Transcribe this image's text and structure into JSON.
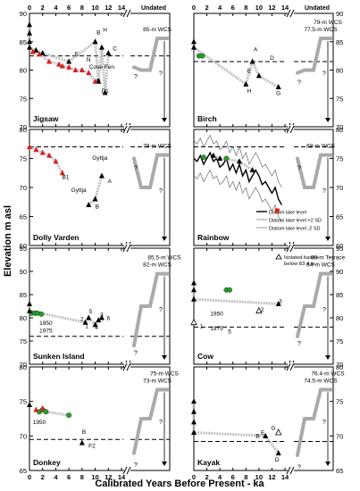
{
  "figure": {
    "y_axis_label": "Elevation m asl",
    "x_axis_label": "Calibrated Years Before Present - ka",
    "undated_label": "Undated",
    "x_ticks": [
      "0",
      "2",
      "4",
      "6",
      "8",
      "10",
      "12",
      "14"
    ]
  },
  "chart_data": [
    {
      "type": "scatter",
      "panel": "Jigsaw",
      "ylim": [
        70,
        90
      ],
      "yticks": [
        70,
        75,
        80,
        85,
        90
      ],
      "yside": "left",
      "dashed_level": 82.5,
      "series": [
        {
          "marker": "triangle",
          "color": "#000000",
          "points": [
            [
              0,
              88
            ],
            [
              0,
              86.5
            ],
            [
              0,
              85
            ],
            [
              0,
              84
            ],
            [
              1,
              83.5
            ],
            [
              2,
              83
            ],
            [
              10,
              85
            ],
            [
              11,
              84
            ],
            [
              12,
              83
            ],
            [
              6,
              81.5
            ],
            [
              10.5,
              78
            ],
            [
              11.5,
              76
            ]
          ]
        },
        {
          "marker": "triangle",
          "color": "#d62020",
          "points": [
            [
              0.5,
              83.2
            ],
            [
              1.5,
              82.8
            ],
            [
              3,
              81.5
            ],
            [
              4.5,
              81
            ],
            [
              5,
              80.7
            ],
            [
              6,
              80.5
            ],
            [
              7,
              80
            ],
            [
              8,
              80
            ],
            [
              9,
              79.5
            ],
            [
              10,
              78
            ]
          ]
        }
      ],
      "point_labels": [
        {
          "text": "B",
          "x": 10.5,
          "y": 86.3
        },
        {
          "text": "H",
          "x": 11.5,
          "y": 86.8
        },
        {
          "text": "C",
          "x": 13,
          "y": 83.5
        },
        {
          "text": "E",
          "x": 7.2,
          "y": 82.5
        },
        {
          "text": "N",
          "x": 9,
          "y": 81.5
        },
        {
          "text": "Cove Fen",
          "x": 11,
          "y": 80.2
        },
        {
          "text": "D",
          "x": 10.5,
          "y": 77.8
        },
        {
          "text": "D1",
          "x": 11.5,
          "y": 76
        }
      ],
      "wcs_label": "85-m WCS"
    },
    {
      "type": "scatter",
      "panel": "Birch",
      "ylim": [
        70,
        90
      ],
      "yticks": [
        70,
        75,
        80,
        85,
        90
      ],
      "yside": "right",
      "dashed_level": 81.5,
      "series": [
        {
          "marker": "circle",
          "color": "#2a9d2a",
          "points": [
            [
              0.8,
              82.5
            ],
            [
              1.3,
              82.5
            ]
          ]
        },
        {
          "marker": "triangle",
          "color": "#000000",
          "points": [
            [
              0,
              85
            ],
            [
              0,
              84
            ],
            [
              9,
              81.5
            ],
            [
              10,
              79
            ],
            [
              8,
              77.5
            ],
            [
              13,
              77
            ]
          ]
        }
      ],
      "point_labels": [
        {
          "text": "A",
          "x": 9.5,
          "y": 83.3
        },
        {
          "text": "D",
          "x": 12,
          "y": 81.8
        },
        {
          "text": "E",
          "x": 8.5,
          "y": 79.5
        },
        {
          "text": "H",
          "x": 8.5,
          "y": 76
        },
        {
          "text": "G",
          "x": 13,
          "y": 75.6
        }
      ],
      "wcs_label": "77.5-m WCS",
      "wcs_label2": "79-m WCS"
    },
    {
      "type": "scatter",
      "panel": "Dolly Varden",
      "ylim": [
        60,
        80
      ],
      "yticks": [
        60,
        65,
        70,
        75,
        80
      ],
      "yside": "left",
      "dashed_level": 77,
      "series": [
        {
          "marker": "triangle",
          "color": "#d62020",
          "points": [
            [
              0,
              77
            ],
            [
              1,
              76.5
            ],
            [
              2,
              76
            ],
            [
              3,
              75.5
            ],
            [
              4,
              74.5
            ],
            [
              5,
              72.5
            ]
          ]
        },
        {
          "marker": "triangle",
          "color": "#000000",
          "points": [
            [
              11,
              72
            ],
            [
              10,
              68
            ],
            [
              9,
              67
            ]
          ]
        }
      ],
      "point_labels": [
        {
          "text": "B1",
          "x": 5.5,
          "y": 71.5
        },
        {
          "text": "Gyttja",
          "x": 10.7,
          "y": 74.8
        },
        {
          "text": "A",
          "x": 12.2,
          "y": 70.8
        },
        {
          "text": "Gyttja",
          "x": 7.5,
          "y": 69.2
        },
        {
          "text": "B",
          "x": 10.3,
          "y": 66.4
        }
      ],
      "wcs_label": "79-m WCS"
    },
    {
      "type": "line",
      "panel": "Rainbow",
      "ylim": [
        60,
        80
      ],
      "yticks": [
        60,
        65,
        70,
        75,
        80
      ],
      "yside": "right",
      "dashed_level": 77,
      "x": [
        0,
        0.5,
        1,
        1.5,
        2,
        2.5,
        3,
        3.5,
        4,
        4.5,
        5,
        5.5,
        6,
        6.5,
        7,
        7.5,
        8,
        8.5,
        9,
        9.5,
        10,
        10.5,
        11,
        11.5,
        12,
        12.5,
        13,
        13.5
      ],
      "series": [
        {
          "name": "Diatom lake level",
          "values": [
            75,
            74.5,
            75.5,
            74,
            75,
            76,
            74.5,
            75,
            73.5,
            74,
            75,
            73,
            74,
            72.5,
            74,
            72,
            73,
            71,
            72,
            73,
            72,
            70.5,
            71,
            70,
            69,
            70,
            68,
            67
          ]
        },
        {
          "name": "Diatom lake level +2 SD",
          "values": [
            78,
            77.5,
            78.5,
            77,
            78,
            79,
            77.5,
            78,
            76.5,
            77,
            78,
            76,
            77,
            75.5,
            77,
            75,
            76,
            74,
            75,
            76,
            75,
            73.5,
            74,
            73,
            72,
            73,
            71,
            70
          ]
        },
        {
          "name": "Diatom lake level -2 SD",
          "values": [
            72,
            71.5,
            72.5,
            71,
            72,
            73,
            71.5,
            72,
            70.5,
            71,
            72,
            70,
            71,
            69.5,
            71,
            69,
            70,
            68,
            69,
            70,
            69,
            67.5,
            68,
            67,
            66,
            67,
            65,
            64
          ]
        }
      ],
      "markers": [
        {
          "marker": "circle",
          "color": "#2a9d2a",
          "points": [
            [
              1.5,
              75.2
            ],
            [
              5,
              75
            ]
          ]
        },
        {
          "marker": "triangle",
          "color": "#000000",
          "points": [
            [
              3,
              75.5
            ],
            [
              4,
              75
            ],
            [
              7,
              74.5
            ],
            [
              9,
              73
            ]
          ]
        },
        {
          "marker": "square",
          "color": "#d62020",
          "points": [
            [
              12.8,
              66
            ]
          ]
        }
      ],
      "wcs_label": "68-m WCS"
    },
    {
      "type": "scatter",
      "panel": "Sunken Island",
      "ylim": [
        70,
        95
      ],
      "yticks": [
        70,
        75,
        80,
        85,
        90,
        95
      ],
      "yside": "left",
      "dashed_level": 76,
      "series": [
        {
          "marker": "circle",
          "color": "#2a9d2a",
          "points": [
            [
              0.3,
              81
            ],
            [
              0.8,
              81
            ],
            [
              1.2,
              81
            ],
            [
              1.8,
              80.8
            ]
          ]
        },
        {
          "marker": "triangle",
          "color": "#000000",
          "points": [
            [
              0,
              83
            ],
            [
              0,
              81.5
            ],
            [
              9,
              80
            ],
            [
              8.5,
              79
            ],
            [
              10,
              78.5
            ],
            [
              10.5,
              79.5
            ],
            [
              11,
              80
            ]
          ]
        }
      ],
      "point_labels": [
        {
          "text": "5",
          "x": 9.3,
          "y": 81
        },
        {
          "text": "3",
          "x": 11,
          "y": 80.3
        },
        {
          "text": "6",
          "x": 12,
          "y": 79.5
        },
        {
          "text": "1",
          "x": 8.7,
          "y": 77.8
        },
        {
          "text": "4",
          "x": 10.2,
          "y": 77.5
        },
        {
          "text": "2",
          "x": 8,
          "y": 79.3
        },
        {
          "text": "1950",
          "x": 2.5,
          "y": 78.5
        },
        {
          "text": "1975",
          "x": 2.5,
          "y": 76.8
        }
      ],
      "wcs_label": "82-m WCS",
      "wcs_label2": "85.5-m WCS"
    },
    {
      "type": "scatter",
      "panel": "Cow",
      "ylim": [
        70,
        95
      ],
      "yticks": [
        70,
        75,
        80,
        85,
        90,
        95
      ],
      "yside": "right",
      "dashed_level": 78,
      "legend": {
        "text": "Isolated basins below 83.4 m",
        "position": "top-right"
      },
      "series": [
        {
          "marker": "circle",
          "color": "#2a9d2a",
          "points": [
            [
              5,
              86
            ],
            [
              5.5,
              86
            ]
          ]
        },
        {
          "marker": "triangle",
          "color": "#000000",
          "points": [
            [
              0,
              87.5
            ],
            [
              0,
              86
            ],
            [
              0,
              84
            ],
            [
              13,
              83
            ]
          ]
        },
        {
          "marker": "open-triangle",
          "color": "#000000",
          "points": [
            [
              10,
              81.5
            ],
            [
              0,
              79
            ]
          ]
        }
      ],
      "point_labels": [
        {
          "text": "3",
          "x": 13.3,
          "y": 83.2
        },
        {
          "text": "2",
          "x": 10.5,
          "y": 81.3
        },
        {
          "text": "1950",
          "x": 3.5,
          "y": 80.5
        },
        {
          "text": "1975",
          "x": 3.5,
          "y": 77.3
        },
        {
          "text": "5",
          "x": 5.5,
          "y": 76.6
        },
        {
          "text": "1",
          "x": 1.2,
          "y": 77.8
        }
      ],
      "wcs_label": "84-m WCS",
      "wcs_label2": "90-m Terrace"
    },
    {
      "type": "scatter",
      "panel": "Donkey",
      "ylim": [
        65,
        80
      ],
      "yticks": [
        65,
        70,
        75,
        80
      ],
      "yside": "left",
      "dashed_level": 69.5,
      "series": [
        {
          "marker": "circle",
          "color": "#2a9d2a",
          "points": [
            [
              1.5,
              73.5
            ],
            [
              2,
              73.8
            ],
            [
              2.5,
              73.5
            ],
            [
              6,
              73
            ]
          ]
        },
        {
          "marker": "triangle",
          "color": "#000000",
          "points": [
            [
              0,
              74.5
            ],
            [
              8,
              69
            ]
          ]
        },
        {
          "marker": "triangle",
          "color": "#d62020",
          "points": [
            [
              1,
              73.8
            ],
            [
              2,
              74
            ]
          ]
        }
      ],
      "point_labels": [
        {
          "text": "1950",
          "x": 1.5,
          "y": 71.7
        },
        {
          "text": "B",
          "x": 8.3,
          "y": 70.3
        },
        {
          "text": "F2",
          "x": 9.5,
          "y": 68.3
        }
      ],
      "wcs_label": "73-m WCS",
      "wcs_label2": "75-m WCS"
    },
    {
      "type": "scatter",
      "panel": "Kayak",
      "ylim": [
        65,
        80
      ],
      "yticks": [
        65,
        70,
        75,
        80
      ],
      "yside": "right",
      "dashed_level": 69.2,
      "series": [
        {
          "marker": "triangle",
          "color": "#000000",
          "points": [
            [
              0,
              75
            ],
            [
              0,
              73.5
            ],
            [
              0,
              72
            ],
            [
              0,
              70.5
            ],
            [
              11,
              70
            ],
            [
              13,
              67.5
            ]
          ]
        },
        {
          "marker": "open-triangle",
          "color": "#000000",
          "points": [
            [
              13,
              70.5
            ]
          ]
        }
      ],
      "point_labels": [
        {
          "text": "B",
          "x": 9.8,
          "y": 69.7
        },
        {
          "text": "E",
          "x": 10.6,
          "y": 70.2
        },
        {
          "text": "G",
          "x": 12.2,
          "y": 70.9
        },
        {
          "text": "D",
          "x": 12.8,
          "y": 66.3
        }
      ],
      "wcs_label": "74.5-m WCS",
      "wcs_label2": "76.4-m WCS"
    }
  ]
}
